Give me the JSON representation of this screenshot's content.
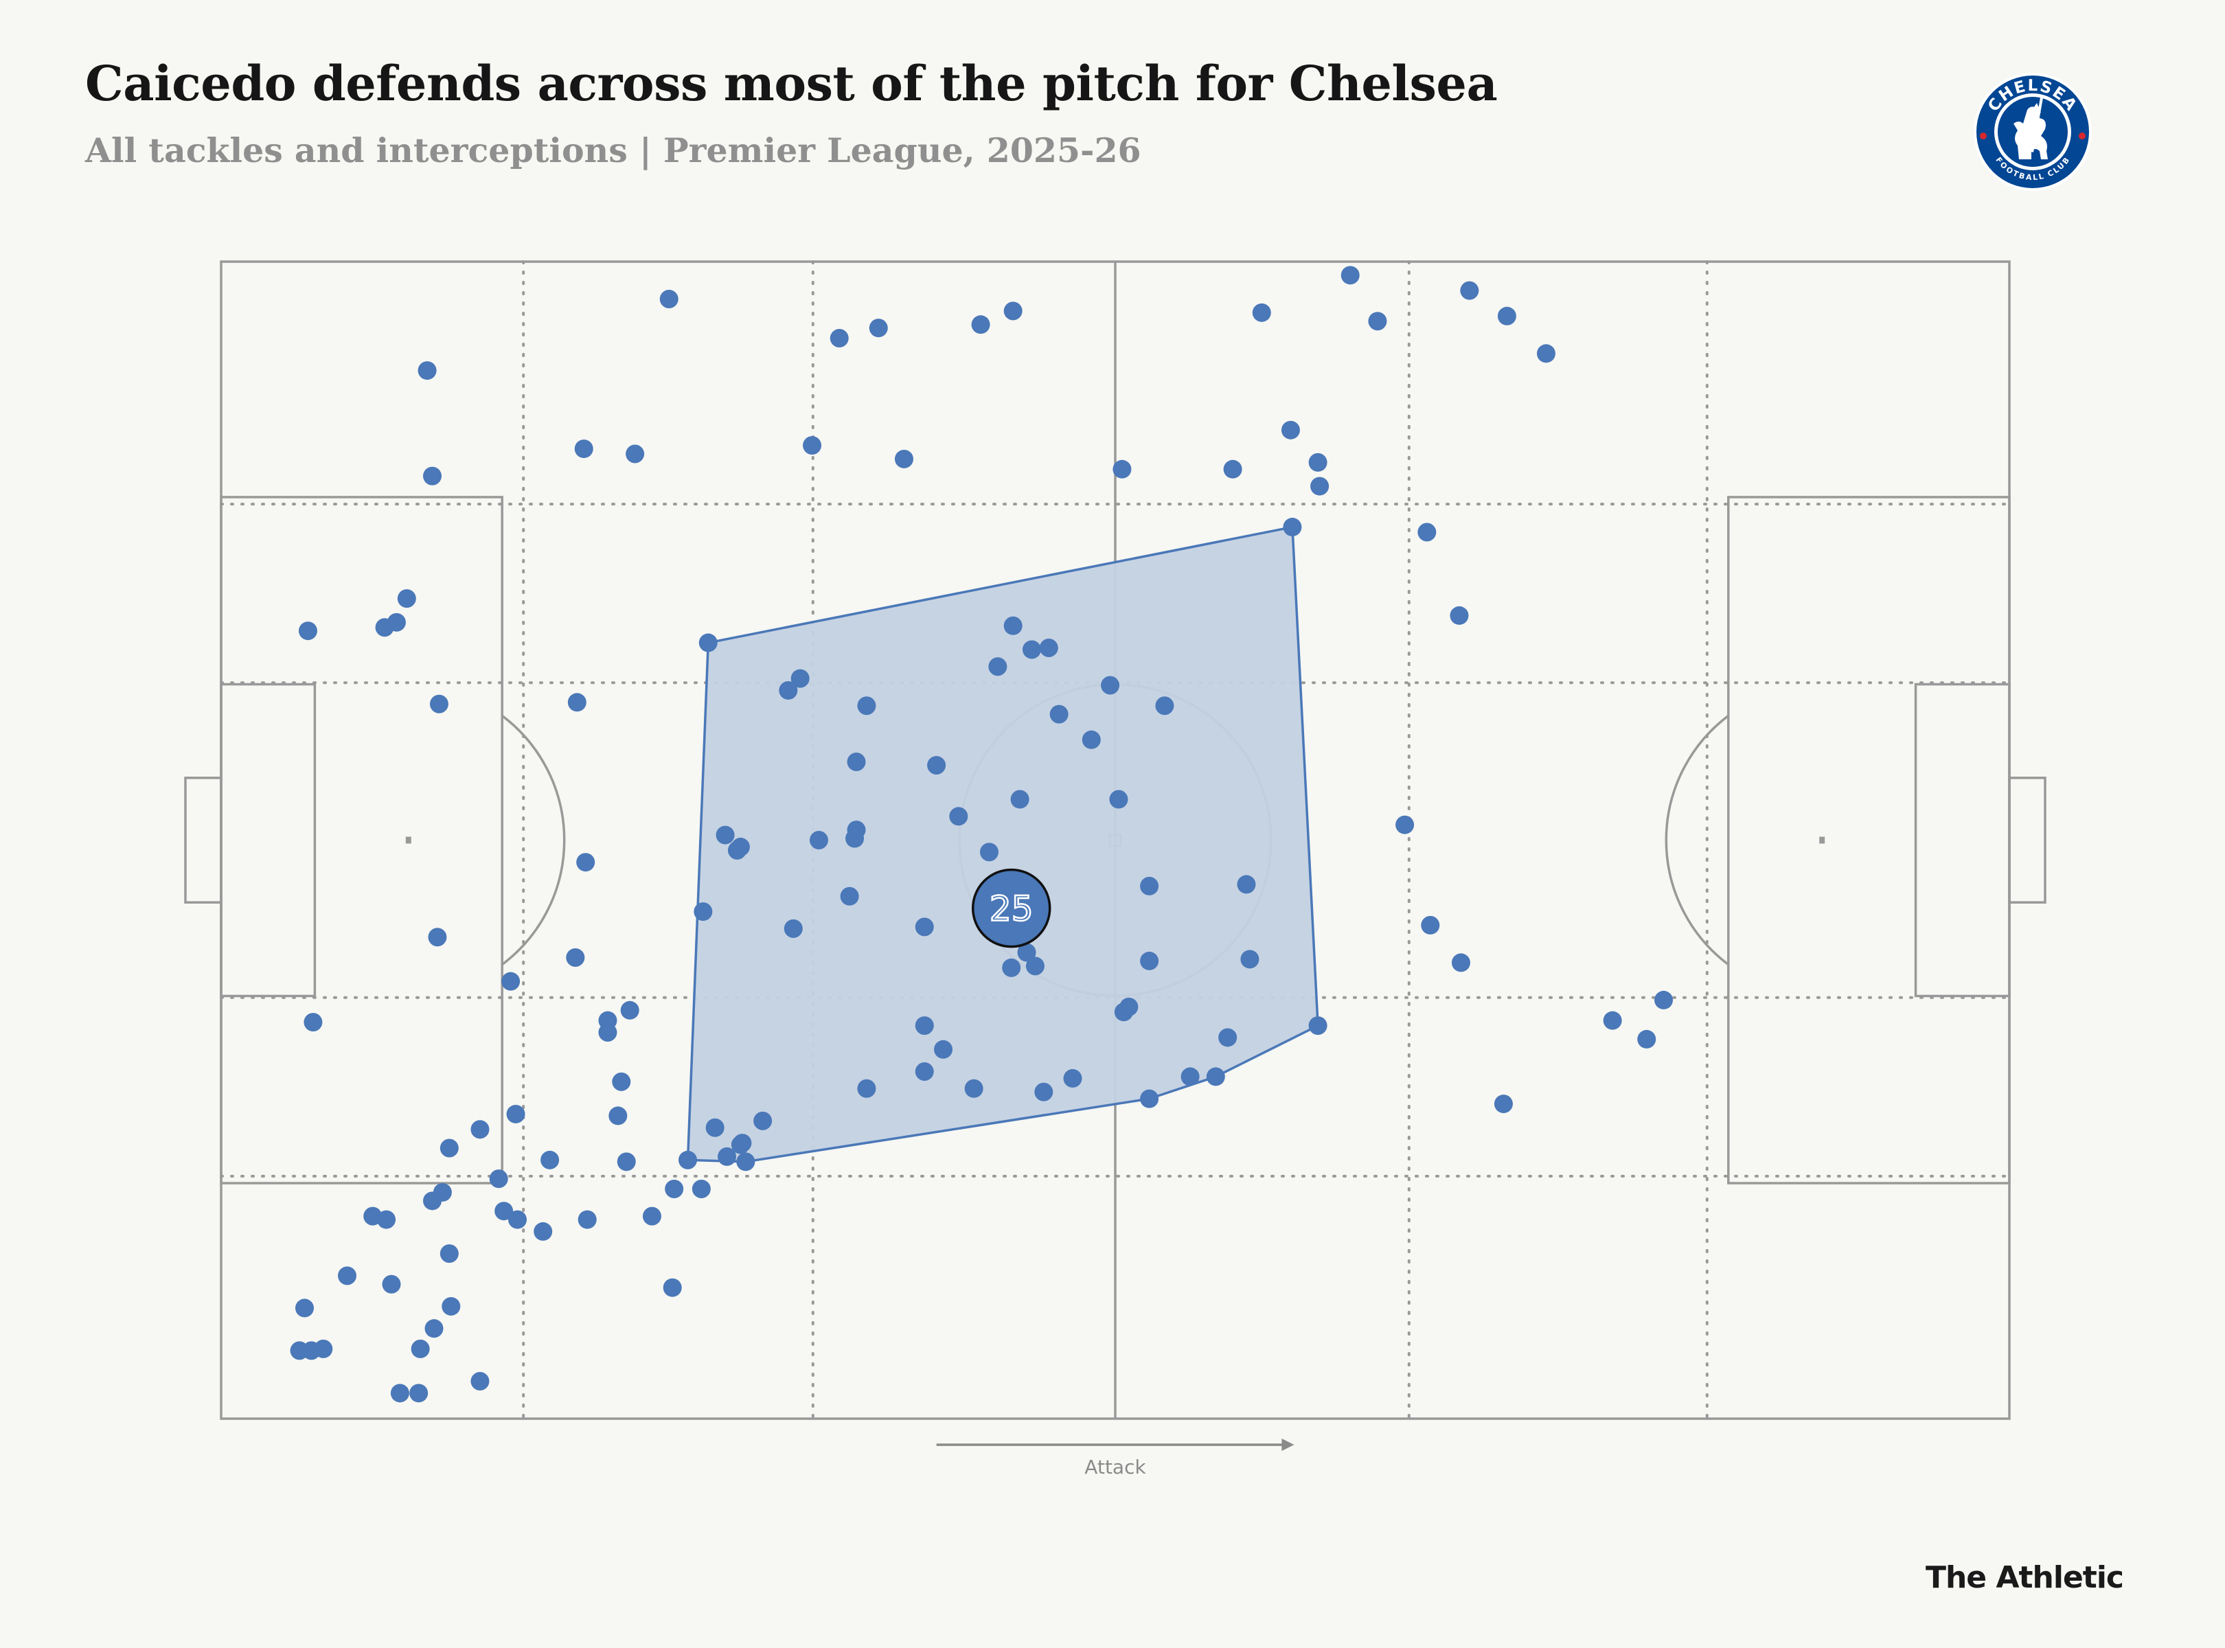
{
  "header": {
    "title": "Caicedo defends across most of the pitch for Chelsea",
    "subtitle": "All tackles and interceptions | Premier League, 2025-26"
  },
  "crest": {
    "icon": "chelsea-crest-icon",
    "text_top": "CHELSEA",
    "text_bottom": "FOOTBALL CLUB"
  },
  "branding": {
    "label": "The Athletic"
  },
  "colors": {
    "background": "#f7f7f3",
    "point": "#4a78b8",
    "hull_fill": "#c3d1e2",
    "hull_stroke": "#4a78b8",
    "pitch_lines": "#999999",
    "crest_blue": "#034694"
  },
  "chart_data": {
    "type": "scatter",
    "x_range": [
      0,
      105
    ],
    "y_range": [
      0,
      68
    ],
    "x_direction": "left-to-right attack",
    "grid": "dotted zone lines",
    "attack_label": "Attack",
    "player_number": "25",
    "average_position": {
      "x": 46.4,
      "y": 38.0
    },
    "points": [
      [
        12.1,
        6.4
      ],
      [
        26.3,
        2.2
      ],
      [
        36.3,
        4.5
      ],
      [
        38.6,
        3.9
      ],
      [
        44.6,
        3.7
      ],
      [
        46.5,
        2.9
      ],
      [
        61.1,
        3.0
      ],
      [
        66.3,
        0.8
      ],
      [
        67.9,
        3.5
      ],
      [
        73.3,
        1.7
      ],
      [
        75.5,
        3.2
      ],
      [
        77.8,
        5.4
      ],
      [
        52.9,
        12.2
      ],
      [
        72.7,
        20.8
      ],
      [
        70.8,
        15.9
      ],
      [
        62.9,
        15.6
      ],
      [
        64.5,
        13.2
      ],
      [
        64.4,
        11.8
      ],
      [
        62.8,
        9.9
      ],
      [
        59.4,
        12.2
      ],
      [
        40.1,
        11.6
      ],
      [
        34.7,
        10.8
      ],
      [
        24.3,
        11.3
      ],
      [
        21.3,
        11.0
      ],
      [
        10.9,
        19.8
      ],
      [
        12.4,
        12.6
      ],
      [
        9.6,
        21.5
      ],
      [
        10.3,
        21.2
      ],
      [
        5.1,
        21.7
      ],
      [
        12.8,
        26.0
      ],
      [
        20.9,
        25.9
      ],
      [
        28.6,
        22.4
      ],
      [
        33.3,
        25.2
      ],
      [
        34.0,
        24.5
      ],
      [
        37.3,
        29.4
      ],
      [
        37.9,
        26.1
      ],
      [
        43.3,
        32.6
      ],
      [
        45.6,
        23.8
      ],
      [
        46.5,
        21.4
      ],
      [
        47.6,
        22.8
      ],
      [
        48.6,
        22.7
      ],
      [
        52.2,
        24.9
      ],
      [
        51.1,
        28.1
      ],
      [
        49.2,
        26.6
      ],
      [
        46.9,
        31.6
      ],
      [
        45.1,
        34.7
      ],
      [
        41.3,
        39.1
      ],
      [
        42.0,
        29.6
      ],
      [
        37.3,
        33.4
      ],
      [
        37.2,
        33.9
      ],
      [
        35.1,
        34.0
      ],
      [
        36.9,
        37.3
      ],
      [
        28.3,
        38.2
      ],
      [
        29.6,
        33.7
      ],
      [
        21.4,
        35.3
      ],
      [
        20.8,
        40.9
      ],
      [
        12.7,
        39.7
      ],
      [
        17.0,
        42.3
      ],
      [
        5.4,
        44.7
      ],
      [
        17.3,
        50.1
      ],
      [
        22.7,
        44.6
      ],
      [
        33.6,
        39.2
      ],
      [
        41.3,
        44.9
      ],
      [
        46.4,
        41.5
      ],
      [
        47.3,
        40.6
      ],
      [
        47.8,
        41.4
      ],
      [
        54.5,
        41.1
      ],
      [
        54.5,
        36.7
      ],
      [
        53.0,
        44.1
      ],
      [
        53.3,
        43.8
      ],
      [
        50.0,
        48.0
      ],
      [
        44.2,
        48.6
      ],
      [
        37.9,
        48.6
      ],
      [
        31.8,
        50.5
      ],
      [
        30.6,
        51.8
      ],
      [
        29.0,
        50.9
      ],
      [
        30.8,
        52.9
      ],
      [
        41.3,
        47.6
      ],
      [
        42.4,
        46.3
      ],
      [
        48.3,
        48.8
      ],
      [
        56.9,
        47.9
      ],
      [
        58.4,
        47.9
      ],
      [
        59.1,
        45.6
      ],
      [
        64.4,
        44.9
      ],
      [
        71.0,
        39.0
      ],
      [
        69.5,
        33.1
      ],
      [
        60.4,
        41.0
      ],
      [
        60.2,
        36.6
      ],
      [
        52.7,
        31.6
      ],
      [
        55.4,
        26.1
      ],
      [
        72.8,
        41.2
      ],
      [
        81.7,
        44.6
      ],
      [
        84.7,
        43.4
      ],
      [
        83.7,
        45.7
      ],
      [
        75.3,
        49.5
      ],
      [
        54.5,
        49.2
      ],
      [
        24.0,
        44.0
      ],
      [
        22.7,
        45.3
      ],
      [
        23.5,
        48.2
      ],
      [
        23.3,
        50.2
      ],
      [
        23.8,
        52.9
      ],
      [
        25.3,
        56.1
      ],
      [
        26.6,
        54.5
      ],
      [
        26.5,
        60.3
      ],
      [
        21.5,
        56.3
      ],
      [
        18.9,
        57.0
      ],
      [
        17.4,
        56.3
      ],
      [
        16.6,
        55.8
      ],
      [
        13.4,
        58.3
      ],
      [
        12.4,
        55.2
      ],
      [
        10.0,
        60.1
      ],
      [
        9.7,
        56.3
      ],
      [
        8.9,
        56.1
      ],
      [
        7.4,
        59.6
      ],
      [
        4.9,
        61.5
      ],
      [
        6.0,
        63.9
      ],
      [
        11.7,
        63.9
      ],
      [
        11.6,
        66.5
      ],
      [
        15.2,
        65.8
      ],
      [
        10.5,
        66.5
      ],
      [
        5.3,
        64.0
      ],
      [
        4.6,
        64.0
      ],
      [
        12.5,
        62.7
      ],
      [
        13.5,
        61.4
      ],
      [
        13.0,
        54.7
      ],
      [
        16.3,
        53.9
      ],
      [
        13.4,
        52.1
      ],
      [
        15.2,
        51.0
      ],
      [
        30.3,
        34.6
      ],
      [
        30.5,
        34.4
      ],
      [
        19.3,
        52.8
      ],
      [
        29.7,
        52.6
      ],
      [
        30.5,
        51.9
      ],
      [
        27.4,
        52.8
      ],
      [
        28.2,
        54.5
      ]
    ]
  }
}
